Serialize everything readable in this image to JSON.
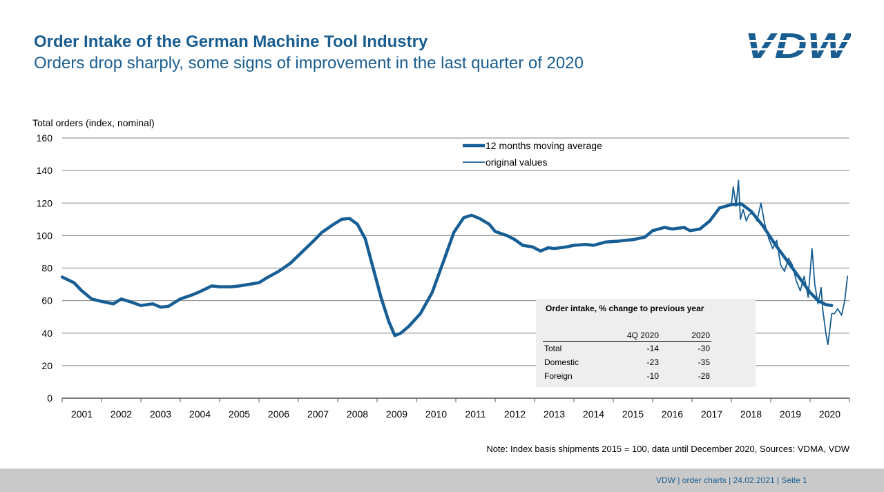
{
  "header": {
    "title": "Order Intake of the German Machine Tool Industry",
    "subtitle": "Orders drop sharply, some signs of improvement in the last quarter of 2020",
    "logo_text": "VDW"
  },
  "colors": {
    "brand": "#1a5e91",
    "series": "#175e95",
    "grid": "#9a9a9a",
    "inset_bg": "#eeeeee",
    "footer_bg": "#c9c9c9"
  },
  "chart_data": {
    "type": "line",
    "title": "Order Intake of the German Machine Tool Industry",
    "ylabel": "Total orders (index, nominal)",
    "xlabel": "",
    "ylim": [
      0,
      160
    ],
    "xlim": [
      2000.5,
      2020.5
    ],
    "yticks": [
      0,
      20,
      40,
      60,
      80,
      100,
      120,
      140,
      160
    ],
    "xtick_labels": [
      "2001",
      "2002",
      "2003",
      "2004",
      "2005",
      "2006",
      "2007",
      "2008",
      "2009",
      "2010",
      "2011",
      "2012",
      "2013",
      "2014",
      "2015",
      "2016",
      "2017",
      "2018",
      "2019",
      "2020"
    ],
    "grid": true,
    "legend_position": "top-center",
    "series": [
      {
        "name": "12 months moving average",
        "style": "thick",
        "points": [
          [
            2000.5,
            74.5
          ],
          [
            2000.8,
            71
          ],
          [
            2001.0,
            66
          ],
          [
            2001.25,
            61
          ],
          [
            2001.5,
            59.5
          ],
          [
            2001.8,
            58
          ],
          [
            2002.0,
            61
          ],
          [
            2002.2,
            59.5
          ],
          [
            2002.5,
            57
          ],
          [
            2002.8,
            58
          ],
          [
            2003.0,
            56
          ],
          [
            2003.2,
            56.5
          ],
          [
            2003.5,
            61
          ],
          [
            2003.8,
            63.5
          ],
          [
            2004.0,
            65.5
          ],
          [
            2004.3,
            69
          ],
          [
            2004.5,
            68.5
          ],
          [
            2004.8,
            68.5
          ],
          [
            2005.0,
            69
          ],
          [
            2005.5,
            71
          ],
          [
            2005.7,
            74
          ],
          [
            2006.0,
            78
          ],
          [
            2006.3,
            83
          ],
          [
            2006.6,
            90
          ],
          [
            2006.9,
            97
          ],
          [
            2007.1,
            102
          ],
          [
            2007.4,
            107
          ],
          [
            2007.6,
            110
          ],
          [
            2007.8,
            110.5
          ],
          [
            2008.0,
            107
          ],
          [
            2008.2,
            98
          ],
          [
            2008.4,
            80
          ],
          [
            2008.6,
            62
          ],
          [
            2008.8,
            47
          ],
          [
            2008.95,
            38.5
          ],
          [
            2009.1,
            40
          ],
          [
            2009.3,
            44
          ],
          [
            2009.6,
            52
          ],
          [
            2009.9,
            65
          ],
          [
            2010.2,
            85
          ],
          [
            2010.45,
            102
          ],
          [
            2010.7,
            111
          ],
          [
            2010.9,
            112.5
          ],
          [
            2011.1,
            110.5
          ],
          [
            2011.35,
            107
          ],
          [
            2011.5,
            102.5
          ],
          [
            2011.8,
            100
          ],
          [
            2012.0,
            97.5
          ],
          [
            2012.2,
            94
          ],
          [
            2012.45,
            93
          ],
          [
            2012.65,
            90.5
          ],
          [
            2012.85,
            92.5
          ],
          [
            2013.0,
            92
          ],
          [
            2013.3,
            93
          ],
          [
            2013.5,
            94
          ],
          [
            2013.8,
            94.5
          ],
          [
            2014.0,
            94
          ],
          [
            2014.3,
            96
          ],
          [
            2014.6,
            96.5
          ],
          [
            2014.8,
            97
          ],
          [
            2015.0,
            97.5
          ],
          [
            2015.3,
            99
          ],
          [
            2015.5,
            103
          ],
          [
            2015.8,
            105
          ],
          [
            2016.0,
            104
          ],
          [
            2016.3,
            105
          ],
          [
            2016.45,
            103
          ],
          [
            2016.7,
            104
          ],
          [
            2016.95,
            109
          ],
          [
            2017.2,
            117
          ],
          [
            2017.5,
            119
          ],
          [
            2017.75,
            119.5
          ],
          [
            2018.0,
            115
          ],
          [
            2018.3,
            106
          ],
          [
            2018.6,
            95
          ],
          [
            2018.9,
            85
          ],
          [
            2019.2,
            75
          ],
          [
            2019.5,
            65
          ],
          [
            2019.7,
            60
          ],
          [
            2019.9,
            57.5
          ],
          [
            2020.05,
            57
          ]
        ]
      },
      {
        "name": "original values",
        "style": "thin",
        "points": [
          [
            2016.95,
            109
          ],
          [
            2017.2,
            117
          ],
          [
            2017.4,
            118.5
          ],
          [
            2017.5,
            119
          ],
          [
            2017.55,
            130
          ],
          [
            2017.62,
            118
          ],
          [
            2017.68,
            134
          ],
          [
            2017.73,
            110
          ],
          [
            2017.8,
            116
          ],
          [
            2017.88,
            109
          ],
          [
            2017.95,
            113
          ],
          [
            2018.05,
            114
          ],
          [
            2018.15,
            109
          ],
          [
            2018.25,
            120
          ],
          [
            2018.35,
            107
          ],
          [
            2018.45,
            98
          ],
          [
            2018.55,
            92
          ],
          [
            2018.65,
            97
          ],
          [
            2018.75,
            82
          ],
          [
            2018.85,
            78
          ],
          [
            2018.95,
            86
          ],
          [
            2019.05,
            82
          ],
          [
            2019.15,
            72
          ],
          [
            2019.25,
            66
          ],
          [
            2019.35,
            75
          ],
          [
            2019.45,
            62
          ],
          [
            2019.55,
            92
          ],
          [
            2019.62,
            70
          ],
          [
            2019.7,
            58
          ],
          [
            2019.78,
            68
          ],
          [
            2019.82,
            55
          ],
          [
            2019.9,
            40
          ],
          [
            2019.95,
            33
          ],
          [
            2020.0,
            42
          ],
          [
            2020.05,
            52
          ],
          [
            2020.12,
            52
          ],
          [
            2020.2,
            55
          ],
          [
            2020.3,
            51
          ],
          [
            2020.38,
            60
          ],
          [
            2020.45,
            75
          ]
        ]
      }
    ]
  },
  "inset": {
    "title": "Order intake, % change to previous year",
    "columns": [
      "",
      "4Q 2020",
      "2020"
    ],
    "rows": [
      {
        "label": "Total",
        "q4": "-14",
        "year": "-30"
      },
      {
        "label": "Domestic",
        "q4": "-23",
        "year": "-35"
      },
      {
        "label": "Foreign",
        "q4": "-10",
        "year": "-28"
      }
    ]
  },
  "note": "Note: Index basis shipments 2015 = 100, data until December 2020, Sources: VDMA, VDW",
  "footer": {
    "text": "VDW  |  order charts  |    24.02.2021     |  Seite  1"
  }
}
